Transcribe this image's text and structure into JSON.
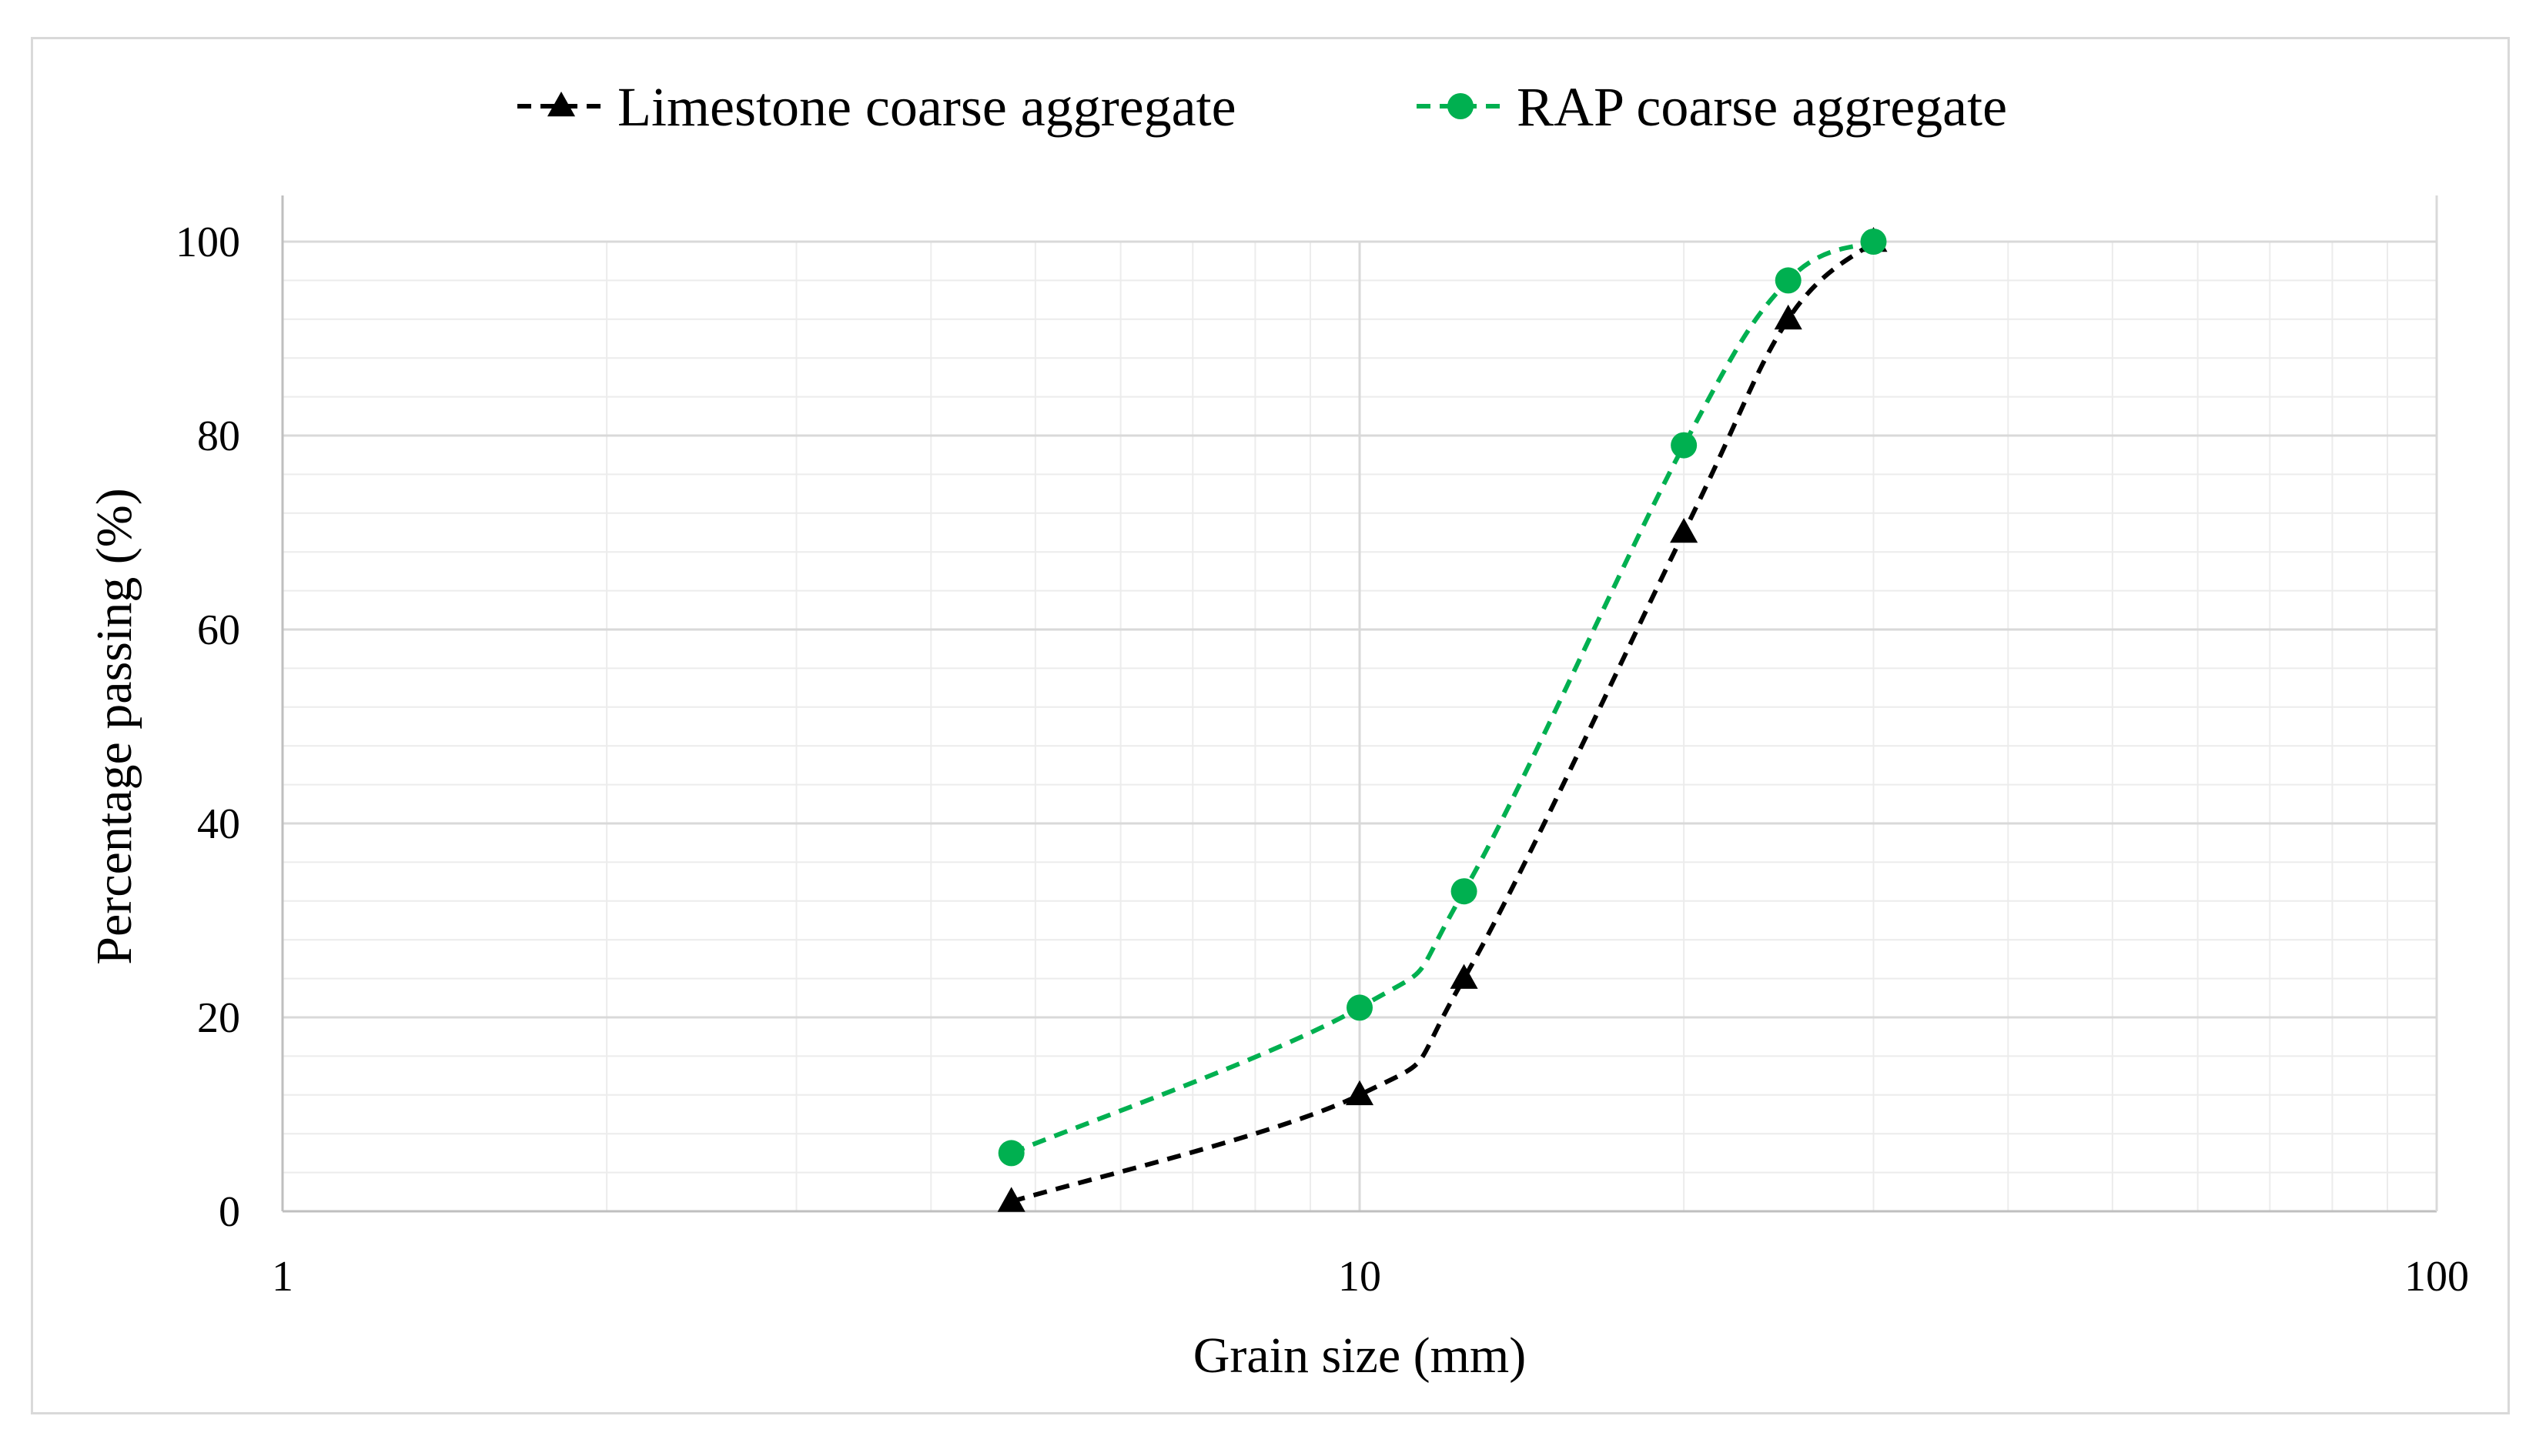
{
  "chart_data": {
    "type": "line",
    "title": "",
    "xlabel": "Grain size (mm)",
    "ylabel": "Percentage passing (%)",
    "xscale": "log",
    "xlim": [
      1,
      100
    ],
    "ylim": [
      0,
      100
    ],
    "x_ticks": [
      "1",
      "10",
      "100"
    ],
    "y_ticks": [
      "0",
      "20",
      "40",
      "60",
      "80",
      "100"
    ],
    "grid": true,
    "legend_position": "top",
    "series": [
      {
        "name": "Limestone coarse aggregate",
        "color": "#000000",
        "marker": "triangle",
        "line_style": "dashed",
        "x": [
          4.75,
          10,
          12.5,
          20,
          25,
          30
        ],
        "y": [
          1,
          12,
          24,
          70,
          92,
          100
        ]
      },
      {
        "name": "RAP coarse aggregate",
        "color": "#00b050",
        "marker": "circle",
        "line_style": "dashed",
        "x": [
          4.75,
          10,
          12.5,
          20,
          25,
          30
        ],
        "y": [
          6,
          21,
          33,
          79,
          96,
          100
        ]
      }
    ]
  }
}
